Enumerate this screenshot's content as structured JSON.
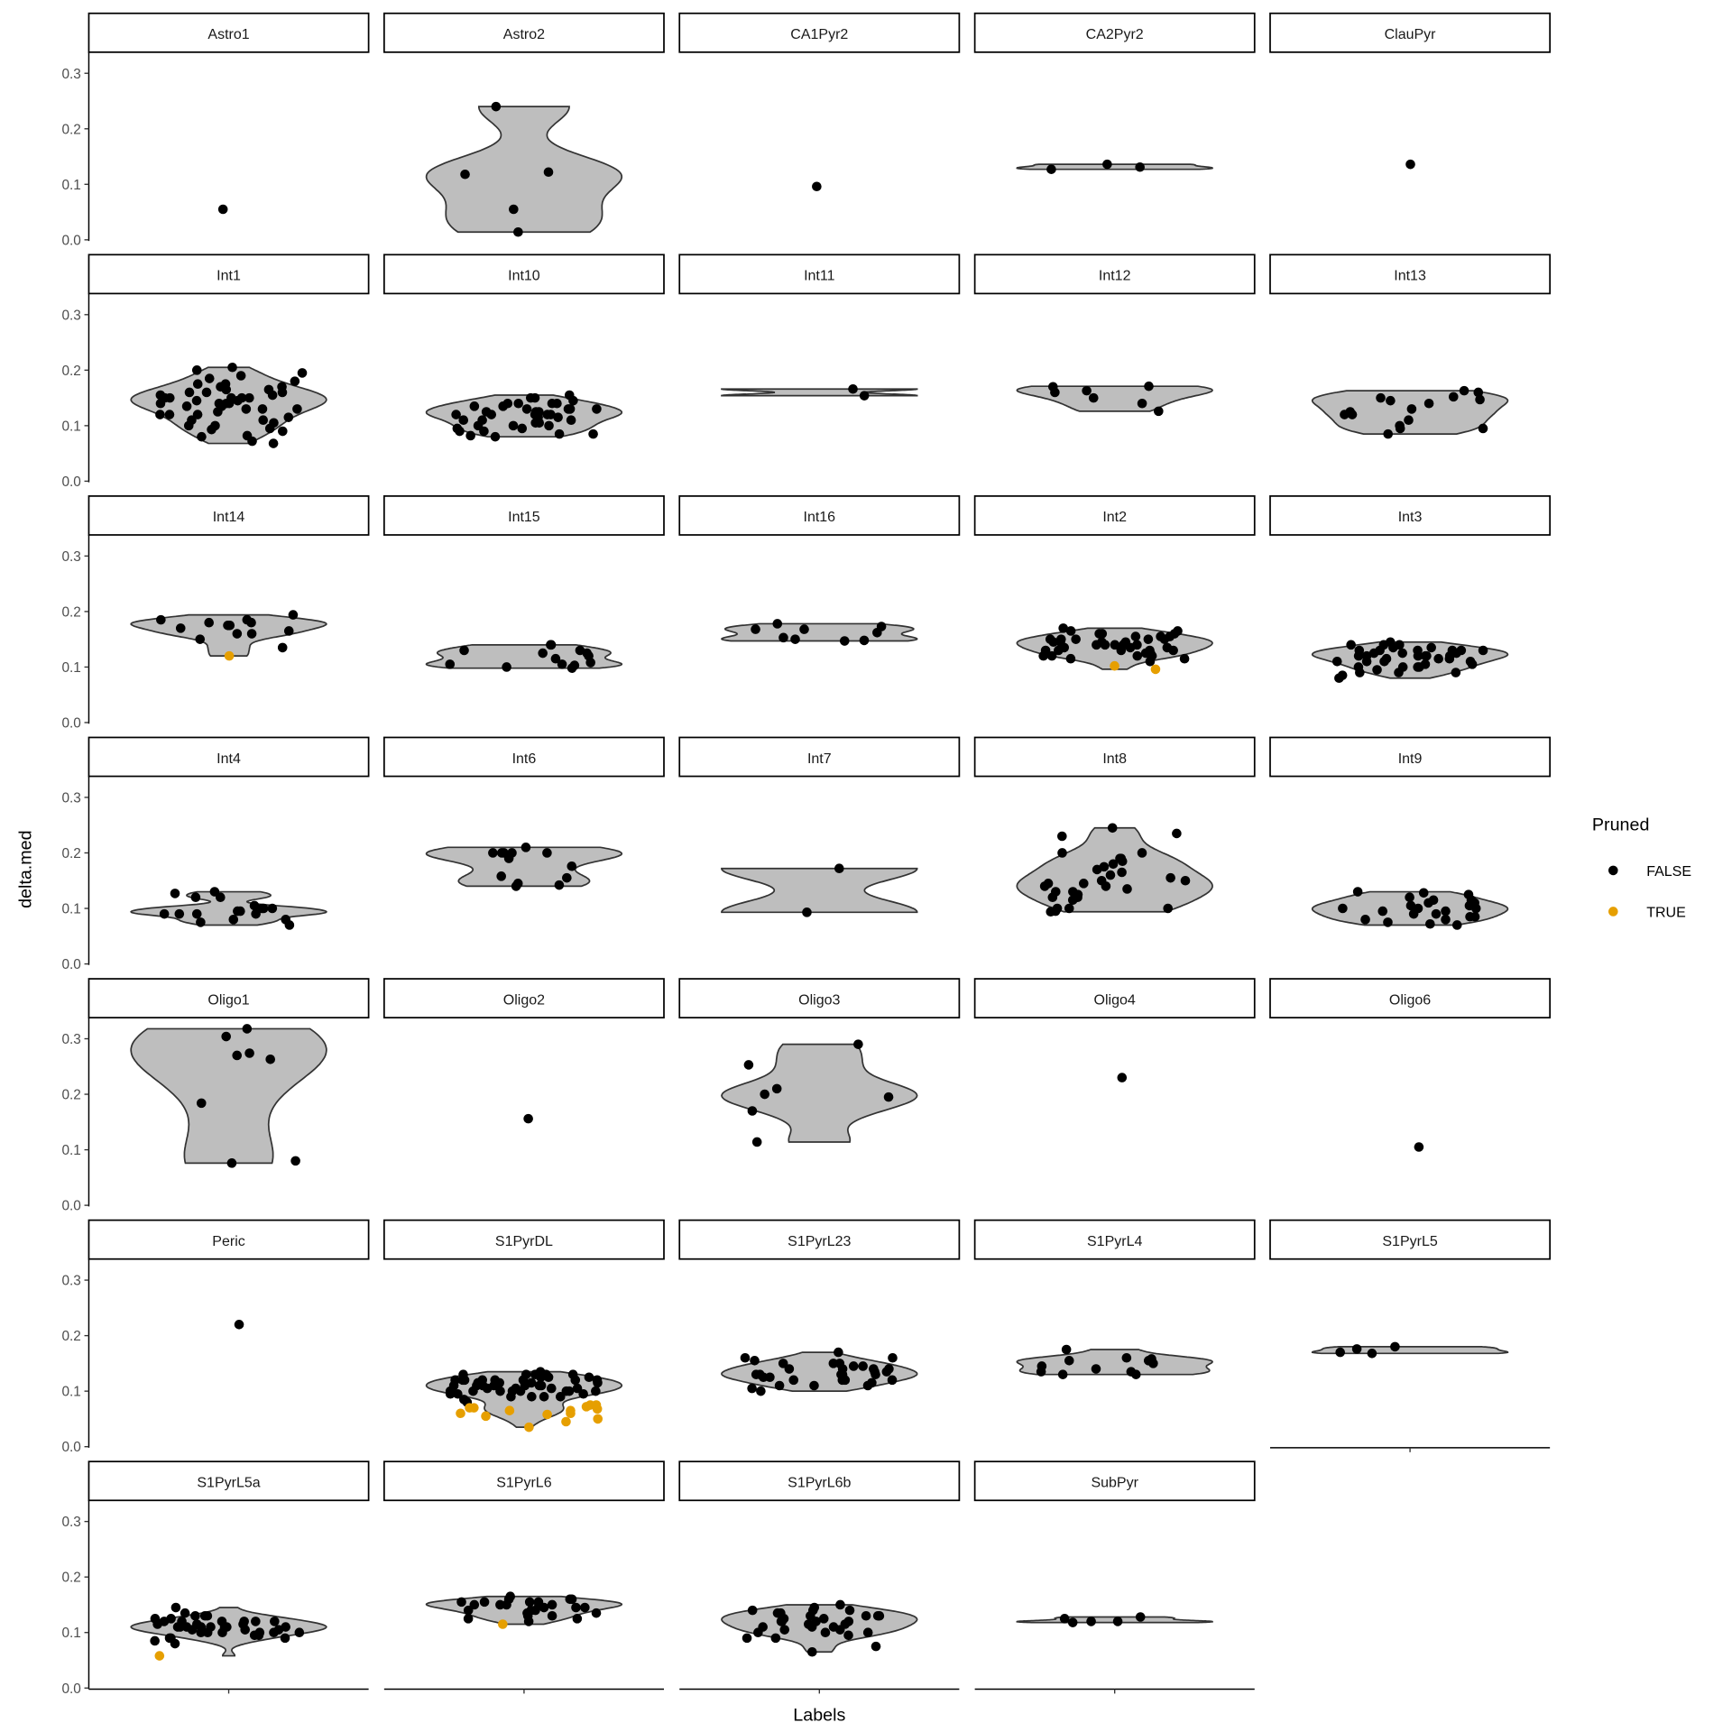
{
  "chart_data": {
    "type": "violin",
    "title": "",
    "xlabel": "Labels",
    "ylabel": "delta.med",
    "ylim": [
      -0.003,
      0.338
    ],
    "yticks": [
      "0.0",
      "0.1",
      "0.2",
      "0.3"
    ],
    "grid": false,
    "violin_fill": "#BEBEBE",
    "violin_stroke": "#333333",
    "legend": {
      "title": "Pruned",
      "position": "right",
      "entries": [
        {
          "label": "FALSE",
          "color": "#000000"
        },
        {
          "label": "TRUE",
          "color": "#E69F00"
        }
      ]
    },
    "panels": [
      {
        "label": "Astro1",
        "false": [
          0.055
        ],
        "true": []
      },
      {
        "label": "Astro2",
        "false": [
          0.24,
          0.118,
          0.122,
          0.055,
          0.014
        ],
        "true": []
      },
      {
        "label": "CA1Pyr2",
        "false": [
          0.096
        ],
        "true": []
      },
      {
        "label": "CA2Pyr2",
        "false": [
          0.136,
          0.131,
          0.127
        ],
        "true": []
      },
      {
        "label": "ClauPyr",
        "false": [
          0.136
        ],
        "true": []
      },
      {
        "label": "Int1",
        "false": [
          0.15,
          0.16,
          0.14,
          0.13,
          0.17,
          0.18,
          0.19,
          0.12,
          0.11,
          0.1,
          0.095,
          0.15,
          0.155,
          0.145,
          0.165,
          0.175,
          0.135,
          0.125,
          0.115,
          0.105,
          0.09,
          0.08,
          0.072,
          0.068,
          0.185,
          0.2,
          0.205,
          0.195,
          0.16,
          0.15,
          0.14,
          0.13,
          0.12,
          0.155,
          0.165,
          0.145,
          0.135,
          0.175,
          0.11,
          0.1,
          0.15,
          0.14,
          0.16,
          0.13,
          0.12,
          0.17,
          0.15,
          0.14,
          0.093,
          0.082
        ],
        "true": []
      },
      {
        "label": "Int10",
        "false": [
          0.12,
          0.13,
          0.14,
          0.11,
          0.1,
          0.09,
          0.085,
          0.08,
          0.125,
          0.135,
          0.145,
          0.15,
          0.155,
          0.115,
          0.105,
          0.095,
          0.12,
          0.13,
          0.14,
          0.11,
          0.125,
          0.135,
          0.09,
          0.1,
          0.12,
          0.13,
          0.115,
          0.14,
          0.105,
          0.125,
          0.085,
          0.082,
          0.15,
          0.11,
          0.12,
          0.13,
          0.1,
          0.14,
          0.095,
          0.12
        ],
        "true": []
      },
      {
        "label": "Int11",
        "false": [
          0.166,
          0.154
        ],
        "true": []
      },
      {
        "label": "Int12",
        "false": [
          0.126,
          0.17,
          0.16,
          0.15,
          0.14,
          0.163,
          0.171
        ],
        "true": []
      },
      {
        "label": "Int13",
        "false": [
          0.163,
          0.145,
          0.15,
          0.11,
          0.1,
          0.095,
          0.12,
          0.085,
          0.152,
          0.147,
          0.095,
          0.14,
          0.125,
          0.12,
          0.16,
          0.13
        ],
        "true": []
      },
      {
        "label": "Int14",
        "false": [
          0.194,
          0.18,
          0.175,
          0.185,
          0.17,
          0.16,
          0.175,
          0.18,
          0.15,
          0.165,
          0.185,
          0.16,
          0.135
        ],
        "true": [
          0.12
        ]
      },
      {
        "label": "Int15",
        "false": [
          0.105,
          0.12,
          0.115,
          0.105,
          0.125,
          0.14,
          0.13,
          0.1,
          0.098,
          0.103,
          0.13,
          0.14,
          0.125,
          0.108
        ],
        "true": []
      },
      {
        "label": "Int16",
        "false": [
          0.168,
          0.178,
          0.173,
          0.162,
          0.147,
          0.148,
          0.153,
          0.168,
          0.15
        ],
        "true": []
      },
      {
        "label": "Int2",
        "false": [
          0.15,
          0.14,
          0.13,
          0.12,
          0.16,
          0.165,
          0.155,
          0.145,
          0.135,
          0.125,
          0.115,
          0.11,
          0.17,
          0.15,
          0.14,
          0.13,
          0.12,
          0.16,
          0.155,
          0.145,
          0.135,
          0.14,
          0.15,
          0.13,
          0.12,
          0.16,
          0.145,
          0.125,
          0.135,
          0.15,
          0.14,
          0.13,
          0.155,
          0.115,
          0.165,
          0.14,
          0.13,
          0.15,
          0.12,
          0.145
        ],
        "true": [
          0.102,
          0.096
        ]
      },
      {
        "label": "Int3",
        "false": [
          0.12,
          0.13,
          0.11,
          0.1,
          0.09,
          0.085,
          0.08,
          0.14,
          0.145,
          0.135,
          0.125,
          0.115,
          0.105,
          0.095,
          0.12,
          0.13,
          0.11,
          0.12,
          0.13,
          0.1,
          0.14,
          0.115,
          0.125,
          0.105,
          0.09,
          0.12,
          0.13,
          0.11,
          0.135,
          0.1,
          0.12,
          0.125,
          0.115,
          0.13,
          0.11,
          0.09,
          0.14,
          0.12,
          0.1,
          0.13
        ],
        "true": []
      },
      {
        "label": "Int4",
        "false": [
          0.12,
          0.09,
          0.08,
          0.09,
          0.07,
          0.09,
          0.13,
          0.12,
          0.08,
          0.095,
          0.075,
          0.1,
          0.09,
          0.1,
          0.105,
          0.095,
          0.1,
          0.127
        ],
        "true": []
      },
      {
        "label": "Int6",
        "false": [
          0.158,
          0.2,
          0.142,
          0.2,
          0.2,
          0.2,
          0.155,
          0.145,
          0.19,
          0.21,
          0.2,
          0.176,
          0.14
        ],
        "true": []
      },
      {
        "label": "Int7",
        "false": [
          0.093,
          0.172
        ],
        "true": []
      },
      {
        "label": "Int8",
        "false": [
          0.245,
          0.235,
          0.23,
          0.2,
          0.2,
          0.19,
          0.185,
          0.18,
          0.175,
          0.17,
          0.16,
          0.155,
          0.15,
          0.145,
          0.14,
          0.135,
          0.13,
          0.125,
          0.12,
          0.115,
          0.1,
          0.1,
          0.095,
          0.094,
          0.1,
          0.15,
          0.14,
          0.12,
          0.145,
          0.19,
          0.165,
          0.13
        ],
        "true": []
      },
      {
        "label": "Int9",
        "false": [
          0.1,
          0.08,
          0.075,
          0.07,
          0.125,
          0.115,
          0.11,
          0.105,
          0.1,
          0.095,
          0.09,
          0.085,
          0.08,
          0.12,
          0.13,
          0.128,
          0.1,
          0.11,
          0.095,
          0.072,
          0.115,
          0.105,
          0.09,
          0.085
        ],
        "true": []
      },
      {
        "label": "Oligo1",
        "false": [
          0.318,
          0.304,
          0.27,
          0.08,
          0.274,
          0.263,
          0.184,
          0.076
        ],
        "true": []
      },
      {
        "label": "Oligo2",
        "false": [
          0.156
        ],
        "true": []
      },
      {
        "label": "Oligo3",
        "false": [
          0.29,
          0.17,
          0.195,
          0.21,
          0.2,
          0.253,
          0.114
        ],
        "true": []
      },
      {
        "label": "Oligo4",
        "false": [
          0.23
        ],
        "true": []
      },
      {
        "label": "Oligo6",
        "false": [
          0.105
        ],
        "true": []
      },
      {
        "label": "Peric",
        "false": [
          0.22
        ],
        "true": []
      },
      {
        "label": "S1PyrDL",
        "false": [
          0.12,
          0.11,
          0.1,
          0.09,
          0.08,
          0.13,
          0.135,
          0.125,
          0.115,
          0.105,
          0.095,
          0.085,
          0.12,
          0.11,
          0.1,
          0.13,
          0.12,
          0.11,
          0.1,
          0.09,
          0.125,
          0.115,
          0.105,
          0.095,
          0.12,
          0.11,
          0.1,
          0.13,
          0.12,
          0.11,
          0.1,
          0.09,
          0.115,
          0.105,
          0.125,
          0.1,
          0.11,
          0.12,
          0.095,
          0.13,
          0.11,
          0.1,
          0.12,
          0.105,
          0.115,
          0.09,
          0.13,
          0.1,
          0.11,
          0.12
        ],
        "true": [
          0.068,
          0.06,
          0.075,
          0.07,
          0.065,
          0.05,
          0.045,
          0.035,
          0.055,
          0.07,
          0.065,
          0.06,
          0.075,
          0.072,
          0.058
        ]
      },
      {
        "label": "S1PyrL23",
        "false": [
          0.1,
          0.11,
          0.12,
          0.13,
          0.14,
          0.15,
          0.16,
          0.17,
          0.155,
          0.145,
          0.135,
          0.125,
          0.115,
          0.105,
          0.13,
          0.14,
          0.12,
          0.15,
          0.13,
          0.14,
          0.12,
          0.11,
          0.15,
          0.135,
          0.125,
          0.145,
          0.13,
          0.14,
          0.12,
          0.16,
          0.13,
          0.11
        ],
        "true": []
      },
      {
        "label": "S1PyrL4",
        "false": [
          0.175,
          0.158,
          0.155,
          0.145,
          0.135,
          0.15,
          0.14,
          0.13,
          0.16,
          0.155,
          0.135,
          0.13
        ],
        "true": []
      },
      {
        "label": "S1PyrL5",
        "false": [
          0.168,
          0.17,
          0.18,
          0.176
        ],
        "true": []
      },
      {
        "label": "S1PyrL5a",
        "false": [
          0.1,
          0.11,
          0.12,
          0.13,
          0.09,
          0.085,
          0.08,
          0.095,
          0.105,
          0.115,
          0.125,
          0.135,
          0.145,
          0.11,
          0.1,
          0.12,
          0.11,
          0.1,
          0.09,
          0.11,
          0.12,
          0.13,
          0.1,
          0.11,
          0.12,
          0.105,
          0.115,
          0.095,
          0.125,
          0.11,
          0.1,
          0.12,
          0.09,
          0.13,
          0.11,
          0.1,
          0.12,
          0.115,
          0.105,
          0.11
        ],
        "true": [
          0.058
        ]
      },
      {
        "label": "S1PyrL6",
        "false": [
          0.15,
          0.155,
          0.16,
          0.165,
          0.145,
          0.14,
          0.135,
          0.13,
          0.125,
          0.12,
          0.15,
          0.155,
          0.145,
          0.16,
          0.14,
          0.15,
          0.135,
          0.155,
          0.15,
          0.145,
          0.13,
          0.16,
          0.14,
          0.15,
          0.125,
          0.155
        ],
        "true": [
          0.115
        ]
      },
      {
        "label": "S1PyrL6b",
        "false": [
          0.065,
          0.075,
          0.09,
          0.1,
          0.11,
          0.12,
          0.13,
          0.14,
          0.15,
          0.145,
          0.135,
          0.125,
          0.115,
          0.105,
          0.095,
          0.12,
          0.13,
          0.11,
          0.1,
          0.14,
          0.12,
          0.13,
          0.11,
          0.09,
          0.125,
          0.135,
          0.115,
          0.105,
          0.14,
          0.12,
          0.1,
          0.13
        ],
        "true": []
      },
      {
        "label": "SubPyr",
        "false": [
          0.12,
          0.125,
          0.118,
          0.128,
          0.12
        ],
        "true": []
      }
    ]
  }
}
